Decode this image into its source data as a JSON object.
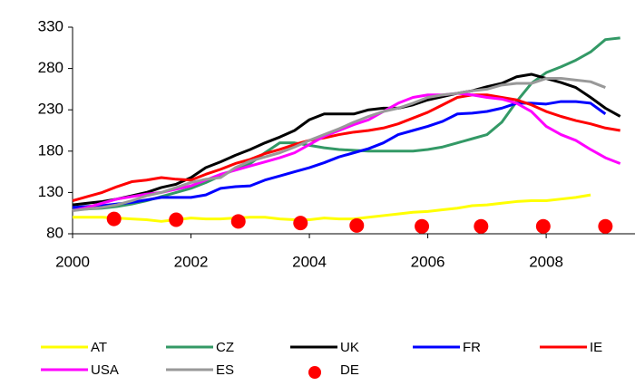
{
  "chart_data": {
    "type": "line",
    "x": [
      2000,
      2000.25,
      2000.5,
      2000.75,
      2001,
      2001.25,
      2001.5,
      2001.75,
      2002,
      2002.25,
      2002.5,
      2002.75,
      2003,
      2003.25,
      2003.5,
      2003.75,
      2004,
      2004.25,
      2004.5,
      2004.75,
      2005,
      2005.25,
      2005.5,
      2005.75,
      2006,
      2006.25,
      2006.5,
      2006.75,
      2007,
      2007.25,
      2007.5,
      2007.75,
      2008,
      2008.25,
      2008.5,
      2008.75,
      2009,
      2009.25
    ],
    "xlim": [
      2000,
      2009.5
    ],
    "xticks": [
      2000,
      2002,
      2004,
      2006,
      2008
    ],
    "ylim": [
      80,
      330
    ],
    "yticks": [
      80,
      130,
      180,
      230,
      280,
      330
    ],
    "grid": false,
    "series": [
      {
        "name": "AT",
        "color": "#ffff00",
        "values": [
          100,
          100,
          100,
          99,
          98,
          97,
          95,
          97,
          99,
          98,
          98,
          99,
          100,
          100,
          98,
          97,
          97,
          99,
          98,
          98,
          100,
          102,
          104,
          106,
          107,
          109,
          111,
          114,
          115,
          117,
          119,
          120,
          120,
          122,
          124,
          127,
          null,
          null
        ]
      },
      {
        "name": "CZ",
        "color": "#339966",
        "values": [
          110,
          110,
          111,
          113,
          116,
          120,
          125,
          130,
          135,
          142,
          150,
          158,
          165,
          178,
          190,
          190,
          187,
          184,
          182,
          181,
          180,
          180,
          180,
          180,
          182,
          185,
          190,
          195,
          200,
          215,
          240,
          262,
          275,
          282,
          290,
          300,
          315,
          317
        ]
      },
      {
        "name": "UK",
        "color": "#000000",
        "values": [
          115,
          117,
          119,
          122,
          126,
          130,
          136,
          140,
          148,
          160,
          167,
          175,
          182,
          190,
          197,
          205,
          218,
          225,
          225,
          225,
          230,
          232,
          232,
          236,
          242,
          246,
          250,
          253,
          258,
          262,
          270,
          273,
          268,
          263,
          257,
          245,
          232,
          222
        ]
      },
      {
        "name": "FR",
        "color": "#0000ff",
        "values": [
          112,
          113,
          114,
          116,
          118,
          121,
          124,
          124,
          124,
          127,
          135,
          137,
          138,
          145,
          150,
          155,
          160,
          166,
          173,
          178,
          183,
          190,
          200,
          205,
          210,
          216,
          225,
          226,
          228,
          232,
          238,
          238,
          237,
          240,
          240,
          238,
          225,
          null
        ]
      },
      {
        "name": "IE",
        "color": "#ff0000",
        "values": [
          120,
          125,
          130,
          137,
          143,
          145,
          148,
          146,
          145,
          152,
          158,
          165,
          170,
          177,
          182,
          188,
          193,
          196,
          200,
          203,
          205,
          208,
          213,
          220,
          227,
          236,
          245,
          248,
          248,
          245,
          242,
          236,
          228,
          222,
          217,
          213,
          208,
          205
        ]
      },
      {
        "name": "USA",
        "color": "#ff00ff",
        "values": [
          108,
          112,
          117,
          122,
          125,
          128,
          130,
          134,
          138,
          145,
          152,
          157,
          162,
          167,
          172,
          178,
          188,
          198,
          205,
          212,
          218,
          228,
          238,
          245,
          248,
          248,
          250,
          248,
          245,
          243,
          238,
          228,
          210,
          200,
          193,
          182,
          172,
          165
        ]
      },
      {
        "name": "ES",
        "color": "#999999",
        "values": [
          108,
          110,
          112,
          115,
          120,
          126,
          130,
          136,
          142,
          146,
          148,
          160,
          168,
          173,
          178,
          185,
          193,
          200,
          207,
          215,
          222,
          228,
          232,
          238,
          245,
          248,
          250,
          253,
          255,
          260,
          262,
          262,
          268,
          268,
          266,
          264,
          257,
          null
        ]
      },
      {
        "name": "DE",
        "color": "#ff0000",
        "type": "scatter",
        "x": [
          2000.7,
          2001.75,
          2002.8,
          2003.85,
          2004.8,
          2005.9,
          2006.9,
          2007.95,
          2009.0
        ],
        "values": [
          98,
          97,
          95,
          93,
          90,
          89,
          89,
          89,
          89
        ]
      }
    ]
  }
}
